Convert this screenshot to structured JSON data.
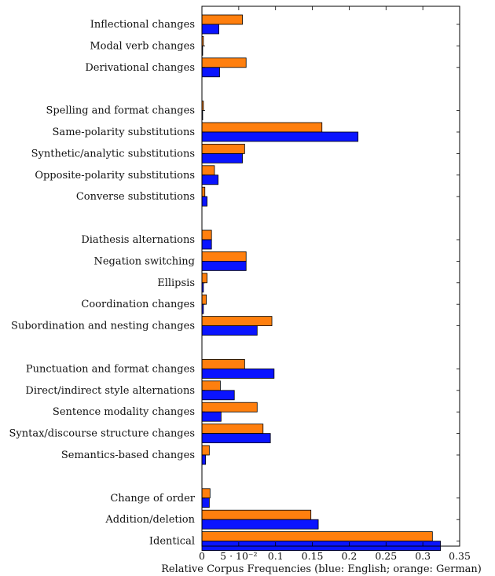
{
  "chart_data": {
    "type": "bar",
    "orientation": "horizontal",
    "xlabel": "Relative Corpus Frequencies (blue: English; orange: German)",
    "xlim": [
      0,
      0.35
    ],
    "xticks": [
      0,
      0.05,
      0.1,
      0.15,
      0.2,
      0.25,
      0.3,
      0.35
    ],
    "xtick_labels": [
      "0",
      "5 · 10⁻²",
      "0.1",
      "0.15",
      "0.2",
      "0.25",
      "0.3",
      "0.35"
    ],
    "grid": false,
    "categories": [
      "Inflectional changes",
      "Modal verb changes",
      "Derivational changes",
      "",
      "Spelling and format changes",
      "Same-polarity substitutions",
      "Synthetic/analytic substitutions",
      "Opposite-polarity substitutions",
      "Converse substitutions",
      "",
      "Diathesis alternations",
      "Negation switching",
      "Ellipsis",
      "Coordination changes",
      "Subordination and nesting changes",
      "",
      "Punctuation and format changes",
      "Direct/indirect style alternations",
      "Sentence modality changes",
      "Syntax/discourse structure changes",
      "Semantics-based changes",
      "",
      "Change of order",
      "Addition/deletion",
      "Identical"
    ],
    "series": [
      {
        "color": "#ff7f0e",
        "values": [
          0.055,
          0.002,
          0.06,
          null,
          0.002,
          0.163,
          0.058,
          0.017,
          0.004,
          null,
          0.013,
          0.06,
          0.007,
          0.006,
          0.095,
          null,
          0.058,
          0.025,
          0.075,
          0.083,
          0.01,
          null,
          0.011,
          0.148,
          0.313
        ]
      },
      {
        "color": "#0a14ff",
        "values": [
          0.023,
          0.001,
          0.024,
          null,
          0.001,
          0.212,
          0.055,
          0.022,
          0.007,
          null,
          0.013,
          0.06,
          0.002,
          0.002,
          0.075,
          null,
          0.098,
          0.044,
          0.026,
          0.093,
          0.005,
          null,
          0.01,
          0.158,
          0.324
        ]
      }
    ]
  }
}
